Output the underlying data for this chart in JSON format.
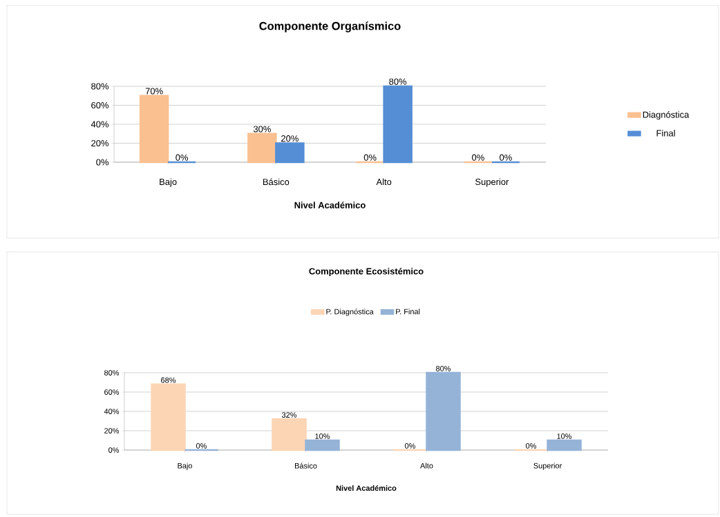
{
  "chart_data": [
    {
      "type": "bar",
      "title": "Componente Organísmico",
      "xlabel": "Nivel Académico",
      "categories": [
        "Bajo",
        "Básico",
        "Alto",
        "Superior"
      ],
      "series": [
        {
          "name": "Diagnóstica",
          "color": "#fac090",
          "values": [
            70,
            30,
            0,
            0
          ],
          "value_labels": [
            "70%",
            "30%",
            "0%",
            "0%"
          ]
        },
        {
          "name": "Final",
          "color": "#558ed5",
          "values": [
            0,
            20,
            80,
            0
          ],
          "value_labels": [
            "0%",
            "20%",
            "80%",
            "0%"
          ]
        }
      ],
      "ylim": [
        0,
        80
      ],
      "yticks": [
        {
          "value": 0,
          "label": "0%"
        },
        {
          "value": 20,
          "label": "20%"
        },
        {
          "value": 40,
          "label": "40%"
        },
        {
          "value": 60,
          "label": "60%"
        },
        {
          "value": 80,
          "label": "80%"
        }
      ],
      "grid": "y",
      "legend": "right"
    },
    {
      "type": "bar",
      "title": "Componente Ecosistémico",
      "xlabel": "Nivel Académico",
      "categories": [
        "Bajo",
        "Básico",
        "Alto",
        "Superior"
      ],
      "series": [
        {
          "name": "P. Diagnóstica",
          "color": "#fcd5b5",
          "values": [
            68,
            32,
            0,
            0
          ],
          "value_labels": [
            "68%",
            "32%",
            "0%",
            "0%"
          ]
        },
        {
          "name": "P. Final",
          "color": "#95b3d7",
          "values": [
            0,
            10,
            80,
            10
          ],
          "value_labels": [
            "0%",
            "10%",
            "80%",
            "10%"
          ]
        }
      ],
      "ylim": [
        0,
        80
      ],
      "yticks": [
        {
          "value": 0,
          "label": "0%"
        },
        {
          "value": 20,
          "label": "20%"
        },
        {
          "value": 40,
          "label": "40%"
        },
        {
          "value": 60,
          "label": "60%"
        },
        {
          "value": 80,
          "label": "80%"
        }
      ],
      "grid": "y",
      "legend": "top"
    }
  ]
}
